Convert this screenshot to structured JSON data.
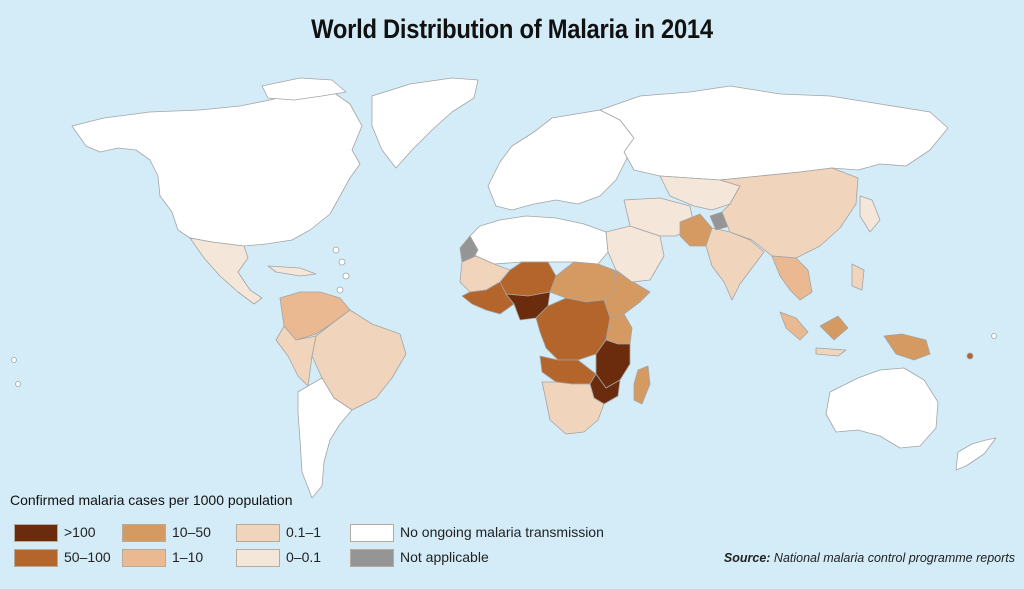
{
  "title": "World Distribution of Malaria in 2014",
  "legend": {
    "title": "Confirmed malaria cases per 1000 population",
    "items": [
      {
        "label": ">100",
        "color": "#6b2c0e"
      },
      {
        "label": "50–100",
        "color": "#b3652c"
      },
      {
        "label": "10–50",
        "color": "#d59a62"
      },
      {
        "label": "1–10",
        "color": "#eab992"
      },
      {
        "label": "0.1–1",
        "color": "#f0d5bc"
      },
      {
        "label": "0–0.1",
        "color": "#f4e6d9"
      },
      {
        "label": "No ongoing malaria transmission",
        "color": "#ffffff"
      },
      {
        "label": "Not applicable",
        "color": "#959595"
      }
    ]
  },
  "source": {
    "prefix": "Source:",
    "text": " National malaria control programme reports"
  },
  "colors": {
    "ocean": "#d3ecf8",
    "border": "#9e9e9e"
  }
}
